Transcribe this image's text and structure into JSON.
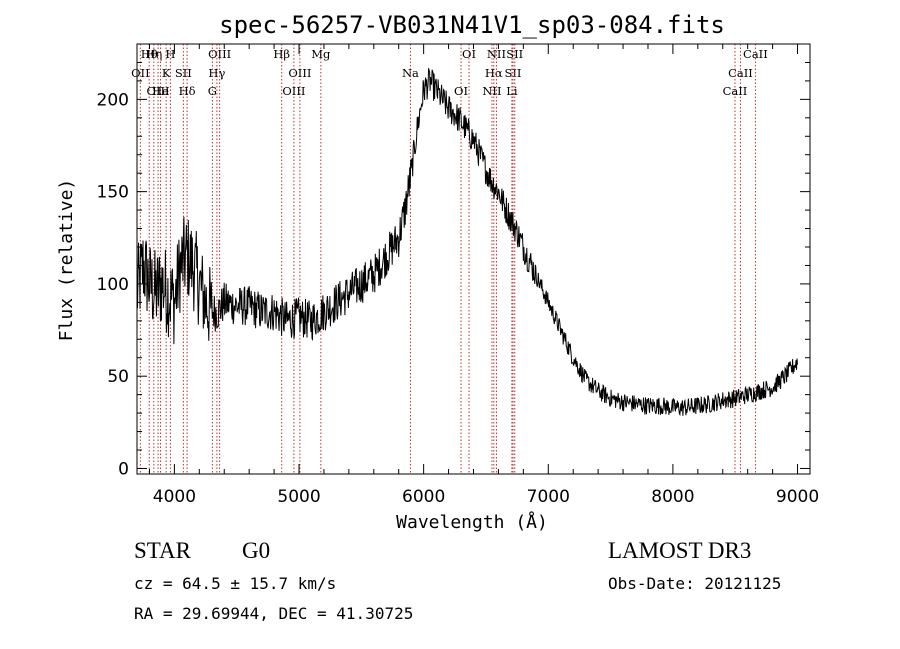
{
  "chart_data": {
    "type": "line",
    "title": "spec-56257-VB031N41V1_sp03-084.fits",
    "xlabel": "Wavelength (Å)",
    "ylabel": "Flux (relative)",
    "xlim": [
      3700,
      9100
    ],
    "ylim": [
      -3,
      230
    ],
    "xticks": [
      4000,
      5000,
      6000,
      7000,
      8000,
      9000
    ],
    "xtick_labels": [
      "4000",
      "5000",
      "6000",
      "7000",
      "8000",
      "9000"
    ],
    "yticks": [
      0,
      50,
      100,
      150,
      200
    ],
    "ytick_labels": [
      "0",
      "50",
      "100",
      "150",
      "200"
    ],
    "series": [
      {
        "name": "flux",
        "x": [
          3700,
          3750,
          3800,
          3850,
          3900,
          3950,
          4000,
          4050,
          4100,
          4150,
          4200,
          4250,
          4300,
          4350,
          4400,
          4500,
          4600,
          4700,
          4800,
          4900,
          5000,
          5100,
          5200,
          5300,
          5400,
          5500,
          5600,
          5700,
          5800,
          5850,
          5900,
          5950,
          6000,
          6050,
          6100,
          6150,
          6200,
          6250,
          6300,
          6350,
          6400,
          6450,
          6500,
          6550,
          6600,
          6650,
          6700,
          6750,
          6800,
          6900,
          7000,
          7100,
          7200,
          7300,
          7400,
          7500,
          7600,
          7700,
          7800,
          7900,
          8000,
          8100,
          8200,
          8300,
          8400,
          8500,
          8600,
          8700,
          8800,
          8900,
          9000
        ],
        "y": [
          95,
          110,
          100,
          95,
          100,
          95,
          90,
          110,
          115,
          110,
          100,
          90,
          85,
          85,
          90,
          88,
          88,
          85,
          85,
          80,
          82,
          80,
          85,
          90,
          95,
          100,
          105,
          115,
          125,
          140,
          160,
          185,
          205,
          210,
          205,
          200,
          195,
          192,
          188,
          183,
          178,
          170,
          162,
          155,
          150,
          142,
          135,
          128,
          120,
          105,
          90,
          75,
          60,
          48,
          42,
          38,
          36,
          35,
          34,
          34,
          33,
          33,
          34,
          35,
          37,
          38,
          40,
          42,
          44,
          50,
          58
        ]
      }
    ],
    "lines": [
      {
        "name": "Hθ",
        "x": 3798
      },
      {
        "name": "OII",
        "x": 3727
      },
      {
        "name": "OIII",
        "x": 3869
      },
      {
        "name": "Hη",
        "x": 3835
      },
      {
        "name": "K",
        "x": 3934
      },
      {
        "name": "He",
        "x": 3889
      },
      {
        "name": "H",
        "x": 3968
      },
      {
        "name": "SII",
        "x": 4072
      },
      {
        "name": "Hδ",
        "x": 4102
      },
      {
        "name": "OIII",
        "x": 4363
      },
      {
        "name": "Hγ",
        "x": 4341
      },
      {
        "name": "G",
        "x": 4305
      },
      {
        "name": "Hβ",
        "x": 4861
      },
      {
        "name": "OIII",
        "x": 5007
      },
      {
        "name": "OIII",
        "x": 4959
      },
      {
        "name": "Mg",
        "x": 5175
      },
      {
        "name": "Na",
        "x": 5894
      },
      {
        "name": "OI",
        "x": 6300
      },
      {
        "name": "OI",
        "x": 6364
      },
      {
        "name": "Hα",
        "x": 6563
      },
      {
        "name": "NII",
        "x": 6548
      },
      {
        "name": "NII",
        "x": 6584
      },
      {
        "name": "SII",
        "x": 6717
      },
      {
        "name": "Li",
        "x": 6708
      },
      {
        "name": "SII",
        "x": 6731
      },
      {
        "name": "CaII",
        "x": 8542
      },
      {
        "name": "CaII",
        "x": 8498
      },
      {
        "name": "CaII",
        "x": 8662
      }
    ]
  },
  "info": {
    "class": "STAR",
    "subclass": "G0",
    "survey": "LAMOST DR3",
    "cz": "cz = 64.5 ± 15.7 km/s",
    "obsdate": "Obs-Date: 20121125",
    "radec": "RA =  29.69944, DEC =  41.30725"
  },
  "colors": {
    "line_marker": "#c03030",
    "spectrum": "#000000"
  }
}
